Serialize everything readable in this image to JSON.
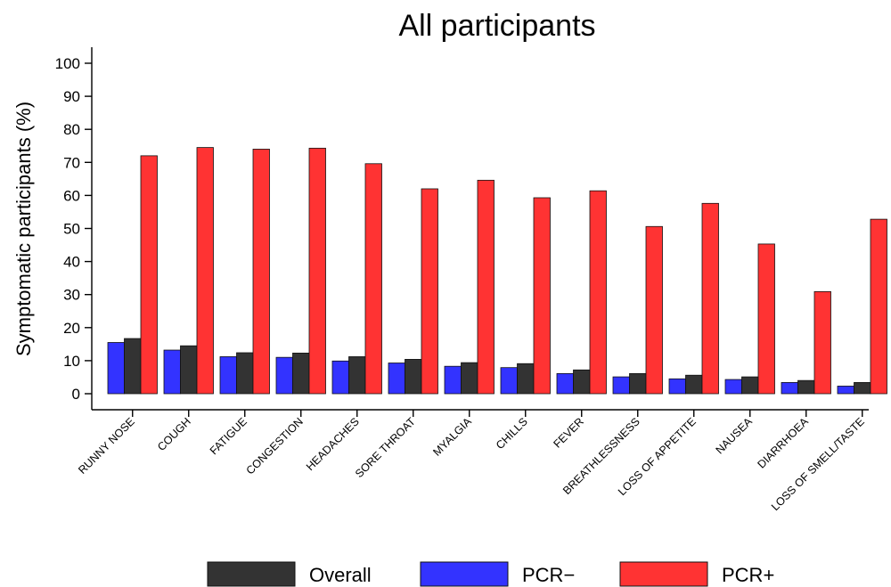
{
  "chart_data": {
    "type": "bar",
    "title": "All participants",
    "ylabel": "Symptomatic participants (%)",
    "xlabel": "",
    "ylim": [
      0,
      100
    ],
    "yticks": [
      0,
      10,
      20,
      30,
      40,
      50,
      60,
      70,
      80,
      90,
      100
    ],
    "grid": false,
    "legend_position": "bottom",
    "categories": [
      "RUNNY NOSE",
      "COUGH",
      "FATIGUE",
      "CONGESTION",
      "HEADACHES",
      "SORE THROAT",
      "MYALGIA",
      "CHILLS",
      "FEVER",
      "BREATHLESSNESS",
      "LOSS OF APPETITE",
      "NAUSEA",
      "DIARRHOEA",
      "LOSS OF SMELL/TASTE"
    ],
    "series": [
      {
        "name": "PCR−",
        "color": "#3333ff",
        "values": [
          15.5,
          13.2,
          11.2,
          11.0,
          9.9,
          9.3,
          8.3,
          7.9,
          6.1,
          5.1,
          4.5,
          4.3,
          3.4,
          2.3
        ]
      },
      {
        "name": "Overall",
        "color": "#333333",
        "values": [
          16.7,
          14.5,
          12.4,
          12.3,
          11.2,
          10.4,
          9.4,
          9.1,
          7.2,
          6.1,
          5.6,
          5.1,
          4.0,
          3.4
        ]
      },
      {
        "name": "PCR+",
        "color": "#ff3333",
        "values": [
          72.0,
          74.5,
          74.0,
          74.3,
          69.6,
          62.0,
          64.6,
          59.3,
          61.4,
          50.6,
          57.6,
          45.3,
          30.9,
          52.8
        ]
      }
    ],
    "legend": [
      {
        "name": "Overall",
        "color": "#333333"
      },
      {
        "name": "PCR−",
        "color": "#3333ff"
      },
      {
        "name": "PCR+",
        "color": "#ff3333"
      }
    ]
  }
}
